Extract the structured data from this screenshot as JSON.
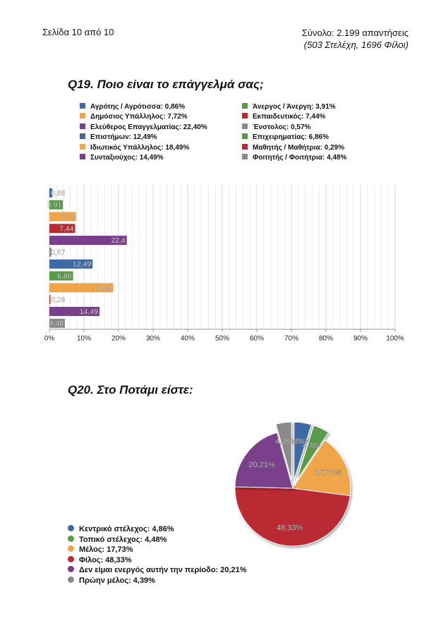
{
  "header": {
    "page_label": "Σελίδα 10 από 10",
    "total_line": "Σύνολο: 2.199 απαντήσεις",
    "breakdown_line": "(503 Στελέχη, 1696 Φίλοι)"
  },
  "colors": {
    "blue": "#3c6ba3",
    "green": "#5a9b49",
    "orange": "#f0a549",
    "red": "#b92b33",
    "purple": "#7a3f8c",
    "gray": "#8a8a8a"
  },
  "q19": {
    "title": "Q19. Ποιο είναι το επάγγελμά σας;",
    "legend": [
      {
        "label": "Αγρότης / Αγρότισσα: 0,86%",
        "color": "#3c6ba3"
      },
      {
        "label": "Άνεργος / Άνεργη: 3,91%",
        "color": "#5a9b49"
      },
      {
        "label": "Δημόσιος Υπάλληλος: 7,72%",
        "color": "#f0a549"
      },
      {
        "label": "Εκπαιδευτικός: 7,44%",
        "color": "#b92b33"
      },
      {
        "label": "Ελεύθερος Επαγγελματίας: 22,40%",
        "color": "#7a3f8c"
      },
      {
        "label": "Ένστολος: 0,57%",
        "color": "#8a8a8a"
      },
      {
        "label": "Επιστήμων: 12,49%",
        "color": "#3c6ba3"
      },
      {
        "label": "Επιχειρηματίας: 6,86%",
        "color": "#5a9b49"
      },
      {
        "label": "Ιδιωτικός Υπάλληλος: 18,49%",
        "color": "#f0a549"
      },
      {
        "label": "Μαθητής / Μαθήτρια: 0,29%",
        "color": "#b92b33"
      },
      {
        "label": "Συνταξιούχος: 14,49%",
        "color": "#7a3f8c"
      },
      {
        "label": "Φοιτητής / Φοιτήτρια: 4,48%",
        "color": "#8a8a8a"
      }
    ]
  },
  "q20": {
    "title": "Q20. Στο Ποτάμι είστε:",
    "legend": [
      {
        "label": "Κεντρικό στέλεχος: 4,86%",
        "color": "#3c6ba3"
      },
      {
        "label": "Τοπικό στέλεχος: 4,48%",
        "color": "#5a9b49"
      },
      {
        "label": "Μέλος: 17,73%",
        "color": "#f0a549"
      },
      {
        "label": "Φίλος: 48,33%",
        "color": "#b92b33"
      },
      {
        "label": "Δεν είμαι ενεργός αυτήν την περίοδο: 20,21%",
        "color": "#7a3f8c"
      },
      {
        "label": "Πρώην μέλος: 4,39%",
        "color": "#8a8a8a"
      }
    ]
  },
  "chart_data": [
    {
      "type": "bar",
      "orientation": "horizontal",
      "title": "Q19. Ποιο είναι το επάγγελμά σας;",
      "values": [
        0.86,
        3.91,
        7.72,
        7.44,
        22.4,
        0.57,
        12.49,
        6.86,
        18.49,
        0.29,
        14.49,
        4.48
      ],
      "value_labels": [
        "0,86",
        "3,91",
        "7,72",
        "7,44",
        "22,4",
        "0,57",
        "12,49",
        "6,86",
        "18,49",
        "0,29",
        "14,49",
        "4,48"
      ],
      "colors": [
        "#3c6ba3",
        "#5a9b49",
        "#f0a549",
        "#b92b33",
        "#7a3f8c",
        "#8a8a8a",
        "#3c6ba3",
        "#5a9b49",
        "#f0a549",
        "#b92b33",
        "#7a3f8c",
        "#8a8a8a"
      ],
      "xlim": [
        0,
        100
      ],
      "x_ticks": [
        "0%",
        "10%",
        "20%",
        "30%",
        "40%",
        "50%",
        "60%",
        "70%",
        "80%",
        "90%",
        "100%"
      ],
      "grid": true
    },
    {
      "type": "pie",
      "title": "Q20. Στο Ποτάμι είστε:",
      "values": [
        4.86,
        4.48,
        17.73,
        48.33,
        20.21,
        4.39
      ],
      "value_labels": [
        "4,86%",
        "4,48%",
        "17,73%",
        "48,33%",
        "20,21%",
        "4,39%"
      ],
      "colors": [
        "#3c6ba3",
        "#5a9b49",
        "#f0a549",
        "#b92b33",
        "#7a3f8c",
        "#8a8a8a"
      ],
      "exploded": [
        true,
        true,
        false,
        false,
        false,
        true
      ]
    }
  ]
}
